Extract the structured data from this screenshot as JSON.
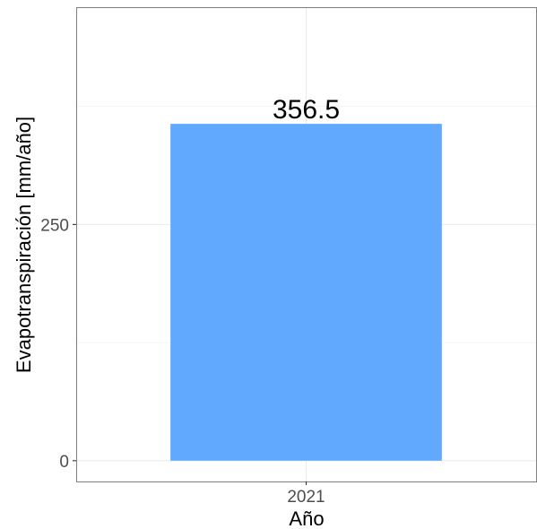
{
  "chart_data": {
    "type": "bar",
    "categories": [
      "2021"
    ],
    "values": [
      356.5
    ],
    "data_labels": [
      "356.5"
    ],
    "xlabel": "Año",
    "ylabel": "Evapotranspiración [mm/año]",
    "yticks": [
      0,
      250
    ],
    "ylim": [
      -22,
      480
    ],
    "grid": true,
    "legend": "none",
    "colors": {
      "bar": "#61a8ff",
      "grid": "#ebebeb",
      "panel_border": "#7f7f7f",
      "text": "#000000",
      "tick_text": "#4d4d4d"
    }
  }
}
